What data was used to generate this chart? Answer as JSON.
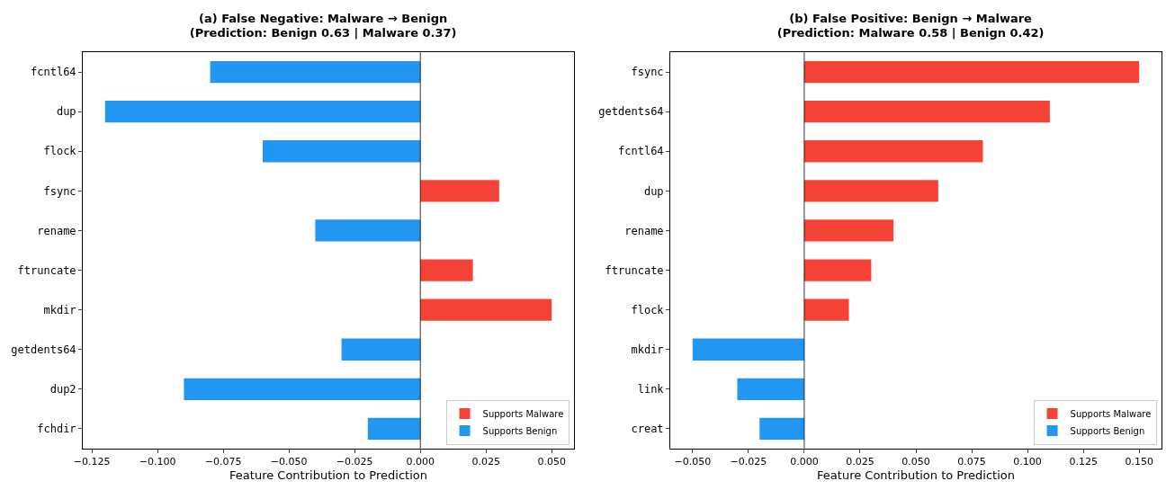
{
  "chart_data": [
    {
      "type": "bar",
      "orientation": "horizontal",
      "title": "(a) False Negative: Malware → Benign\n(Prediction: Benign 0.63 | Malware 0.37)",
      "xlabel": "Feature Contribution to Prediction",
      "categories": [
        "fcntl64",
        "dup",
        "flock",
        "fsync",
        "rename",
        "ftruncate",
        "mkdir",
        "getdents64",
        "dup2",
        "fchdir"
      ],
      "series": [
        {
          "name": "Supports Malware",
          "color": "#f44336",
          "values": [
            null,
            null,
            null,
            0.03,
            null,
            0.02,
            0.05,
            null,
            null,
            null
          ]
        },
        {
          "name": "Supports Benign",
          "color": "#2196f3",
          "values": [
            -0.08,
            -0.12,
            -0.06,
            null,
            -0.04,
            null,
            null,
            -0.03,
            -0.09,
            -0.02
          ]
        }
      ],
      "xlim": [
        -0.1285,
        0.0585
      ],
      "xticks": [
        {
          "value": -0.125,
          "label": "−0.125"
        },
        {
          "value": -0.1,
          "label": "−0.100"
        },
        {
          "value": -0.075,
          "label": "−0.075"
        },
        {
          "value": -0.05,
          "label": "−0.050"
        },
        {
          "value": -0.025,
          "label": "−0.025"
        },
        {
          "value": 0,
          "label": "0.000"
        },
        {
          "value": 0.025,
          "label": "0.025"
        },
        {
          "value": 0.05,
          "label": "0.050"
        }
      ],
      "ref_lines": [
        {
          "axis": "x",
          "value": 0,
          "color": "#000000"
        }
      ],
      "grid": false,
      "legend": "bottom right"
    },
    {
      "type": "bar",
      "orientation": "horizontal",
      "title": "(b) False Positive: Benign → Malware\n(Prediction: Malware 0.58 | Benign 0.42)",
      "xlabel": "Feature Contribution to Prediction",
      "categories": [
        "fsync",
        "getdents64",
        "fcntl64",
        "dup",
        "rename",
        "ftruncate",
        "flock",
        "mkdir",
        "link",
        "creat"
      ],
      "series": [
        {
          "name": "Supports Malware",
          "color": "#f44336",
          "values": [
            0.15,
            0.11,
            0.08,
            0.06,
            0.04,
            0.03,
            0.02,
            null,
            null,
            null
          ]
        },
        {
          "name": "Supports Benign",
          "color": "#2196f3",
          "values": [
            null,
            null,
            null,
            null,
            null,
            null,
            null,
            -0.05,
            -0.03,
            -0.02
          ]
        }
      ],
      "xlim": [
        -0.06,
        0.16
      ],
      "xticks": [
        {
          "value": -0.05,
          "label": "−0.050"
        },
        {
          "value": -0.025,
          "label": "−0.025"
        },
        {
          "value": 0,
          "label": "0.000"
        },
        {
          "value": 0.025,
          "label": "0.025"
        },
        {
          "value": 0.05,
          "label": "0.050"
        },
        {
          "value": 0.075,
          "label": "0.075"
        },
        {
          "value": 0.1,
          "label": "0.100"
        },
        {
          "value": 0.125,
          "label": "0.125"
        },
        {
          "value": 0.15,
          "label": "0.150"
        }
      ],
      "ref_lines": [
        {
          "axis": "x",
          "value": 0,
          "color": "#000000"
        }
      ],
      "grid": false,
      "legend": "bottom right"
    }
  ]
}
